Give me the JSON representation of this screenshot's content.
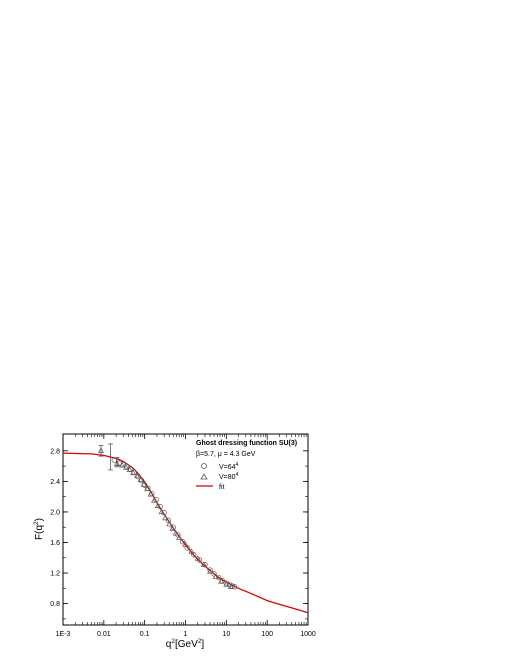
{
  "chart_data": {
    "type": "scatter",
    "xscale": "log",
    "xlim": [
      0.001,
      1000
    ],
    "ylim": [
      0.52,
      3.02
    ],
    "xticks": [
      {
        "value": 0.001,
        "label": "1E-3"
      },
      {
        "value": 0.01,
        "label": "0.01"
      },
      {
        "value": 0.1,
        "label": "0.1"
      },
      {
        "value": 1,
        "label": "1"
      },
      {
        "value": 10,
        "label": "10"
      },
      {
        "value": 100,
        "label": "100"
      },
      {
        "value": 1000,
        "label": "1000"
      }
    ],
    "yticks": [
      {
        "value": 0.8,
        "label": "0.8"
      },
      {
        "value": 1.2,
        "label": "1.2"
      },
      {
        "value": 1.6,
        "label": "1.6"
      },
      {
        "value": 2.0,
        "label": "2.0"
      },
      {
        "value": 2.4,
        "label": "2.4"
      },
      {
        "value": 2.8,
        "label": "2.8"
      }
    ],
    "xlabel": {
      "base": "q",
      "sup1": "2",
      "mid": "[GeV",
      "sup2": "2",
      "end": "]"
    },
    "ylabel": {
      "base": "F(q",
      "sup": "2",
      "end": ")"
    },
    "grid": false,
    "legend": {
      "placement": "top-right",
      "title": "Ghost dressing function SU(3)",
      "subtitle": "β=5.7, μ = 4.3 GeV",
      "entries": [
        {
          "marker": "circle",
          "label": "V=64",
          "sup": "4"
        },
        {
          "marker": "triangle",
          "label": "V=80",
          "sup": "4"
        },
        {
          "marker": "line",
          "label": "fit"
        }
      ]
    },
    "series": [
      {
        "marker": "circle",
        "color": "#555555",
        "x": [
          0.018,
          0.024,
          0.03,
          0.036,
          0.045,
          0.055,
          0.07,
          0.085,
          0.1,
          0.12,
          0.15,
          0.19,
          0.24,
          0.3,
          0.38,
          0.5,
          0.65,
          0.85,
          1.1,
          1.6,
          2.2,
          3.0,
          4.0,
          5.0,
          6.5,
          8.0,
          10.0,
          12.0,
          14.0,
          16.0
        ],
        "y": [
          2.68,
          2.64,
          2.62,
          2.6,
          2.56,
          2.52,
          2.46,
          2.41,
          2.35,
          2.31,
          2.24,
          2.16,
          2.07,
          1.99,
          1.89,
          1.8,
          1.7,
          1.61,
          1.53,
          1.44,
          1.37,
          1.31,
          1.24,
          1.19,
          1.14,
          1.1,
          1.07,
          1.05,
          1.03,
          1.02
        ]
      },
      {
        "marker": "triangle",
        "color": "#555555",
        "x": [
          0.0085,
          0.021,
          0.028,
          0.035,
          0.043,
          0.052,
          0.065,
          0.08,
          0.095,
          0.115,
          0.14,
          0.17,
          0.21,
          0.26,
          0.32,
          0.4,
          0.48,
          0.58,
          0.7,
          1.0,
          1.4,
          2.0,
          2.8,
          4.0,
          5.5,
          7.5,
          10.0,
          13.0
        ],
        "y": [
          2.8,
          2.63,
          2.61,
          2.58,
          2.55,
          2.51,
          2.47,
          2.42,
          2.36,
          2.3,
          2.23,
          2.15,
          2.08,
          2.0,
          1.92,
          1.84,
          1.78,
          1.72,
          1.66,
          1.57,
          1.48,
          1.39,
          1.31,
          1.22,
          1.15,
          1.09,
          1.05,
          1.02
        ]
      }
    ],
    "errorbars": [
      {
        "x": 0.0085,
        "low": 2.73,
        "high": 2.87
      },
      {
        "x": 0.0145,
        "low": 2.55,
        "high": 2.89
      },
      {
        "x": 0.021,
        "low": 2.59,
        "high": 2.71
      }
    ],
    "fit": {
      "color": "#dd0000",
      "x": [
        0.001,
        0.002,
        0.005,
        0.01,
        0.02,
        0.03,
        0.05,
        0.07,
        0.1,
        0.15,
        0.2,
        0.3,
        0.5,
        0.7,
        1.0,
        1.5,
        2.0,
        3.0,
        5.0,
        7.0,
        10.0,
        20.0,
        50.0,
        100.0,
        200.0,
        500.0,
        1000.0
      ],
      "y": [
        2.77,
        2.765,
        2.76,
        2.74,
        2.7,
        2.66,
        2.58,
        2.5,
        2.39,
        2.24,
        2.12,
        1.97,
        1.79,
        1.68,
        1.57,
        1.45,
        1.38,
        1.29,
        1.19,
        1.13,
        1.08,
        1.0,
        0.91,
        0.84,
        0.79,
        0.73,
        0.68
      ]
    }
  }
}
